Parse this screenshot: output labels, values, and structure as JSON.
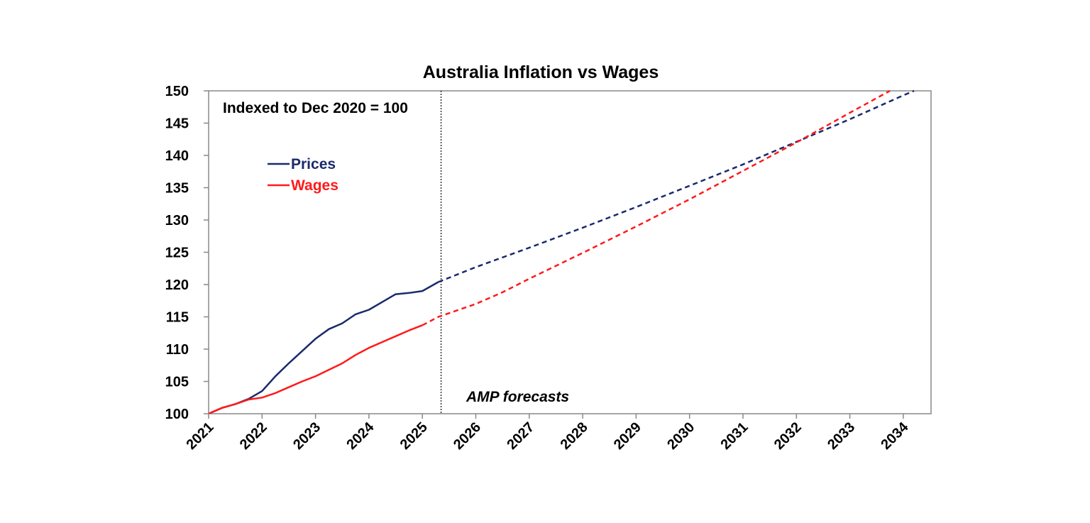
{
  "chart_data": {
    "type": "line",
    "title": "Australia Inflation vs Wages",
    "annotation": "Indexed to Dec 2020 = 100",
    "forecast_label": "AMP forecasts",
    "forecast_start": 2025.35,
    "xlabel": "",
    "ylabel": "",
    "xlim": [
      2021,
      2034.5
    ],
    "ylim": [
      100,
      150
    ],
    "yticks": [
      100,
      105,
      110,
      115,
      120,
      125,
      130,
      135,
      140,
      145,
      150
    ],
    "xticks": [
      "2021",
      "2022",
      "2023",
      "2024",
      "2025",
      "2026",
      "2027",
      "2028",
      "2029",
      "2030",
      "2031",
      "2032",
      "2033",
      "2034"
    ],
    "grid": false,
    "legend_position": "top-left",
    "series": [
      {
        "name": "Prices",
        "color": "#1a2a6c",
        "actual": [
          [
            2021.0,
            100.0
          ],
          [
            2021.25,
            100.9
          ],
          [
            2021.5,
            101.5
          ],
          [
            2021.75,
            102.3
          ],
          [
            2022.0,
            103.5
          ],
          [
            2022.25,
            105.8
          ],
          [
            2022.5,
            107.8
          ],
          [
            2022.75,
            109.7
          ],
          [
            2023.0,
            111.6
          ],
          [
            2023.25,
            113.1
          ],
          [
            2023.5,
            114.0
          ],
          [
            2023.75,
            115.4
          ],
          [
            2024.0,
            116.1
          ],
          [
            2024.25,
            117.3
          ],
          [
            2024.5,
            118.5
          ],
          [
            2024.75,
            118.7
          ],
          [
            2025.0,
            119.0
          ],
          [
            2025.3,
            120.4
          ]
        ],
        "forecast": [
          [
            2025.3,
            120.4
          ],
          [
            2026.0,
            122.7
          ],
          [
            2027.0,
            125.7
          ],
          [
            2028.0,
            128.8
          ],
          [
            2029.0,
            132.0
          ],
          [
            2030.0,
            135.3
          ],
          [
            2031.0,
            138.6
          ],
          [
            2032.0,
            142.1
          ],
          [
            2033.0,
            145.6
          ],
          [
            2034.0,
            149.3
          ],
          [
            2034.2,
            150.0
          ]
        ]
      },
      {
        "name": "Wages",
        "color": "#ff1a1a",
        "actual": [
          [
            2021.0,
            100.0
          ],
          [
            2021.25,
            100.9
          ],
          [
            2021.5,
            101.5
          ],
          [
            2021.75,
            102.2
          ],
          [
            2022.0,
            102.5
          ],
          [
            2022.25,
            103.2
          ],
          [
            2022.5,
            104.1
          ],
          [
            2022.75,
            105.0
          ],
          [
            2023.0,
            105.8
          ],
          [
            2023.25,
            106.8
          ],
          [
            2023.5,
            107.8
          ],
          [
            2023.75,
            109.1
          ],
          [
            2024.0,
            110.2
          ],
          [
            2024.25,
            111.1
          ],
          [
            2024.5,
            112.0
          ],
          [
            2024.75,
            112.9
          ],
          [
            2025.0,
            113.7
          ]
        ],
        "forecast": [
          [
            2025.0,
            113.7
          ],
          [
            2025.3,
            115.0
          ],
          [
            2026.0,
            117.0
          ],
          [
            2026.5,
            118.8
          ],
          [
            2027.0,
            120.9
          ],
          [
            2028.0,
            124.9
          ],
          [
            2029.0,
            129.0
          ],
          [
            2030.0,
            133.2
          ],
          [
            2031.0,
            137.6
          ],
          [
            2032.0,
            142.0
          ],
          [
            2033.0,
            146.6
          ],
          [
            2033.75,
            150.0
          ]
        ]
      }
    ]
  }
}
